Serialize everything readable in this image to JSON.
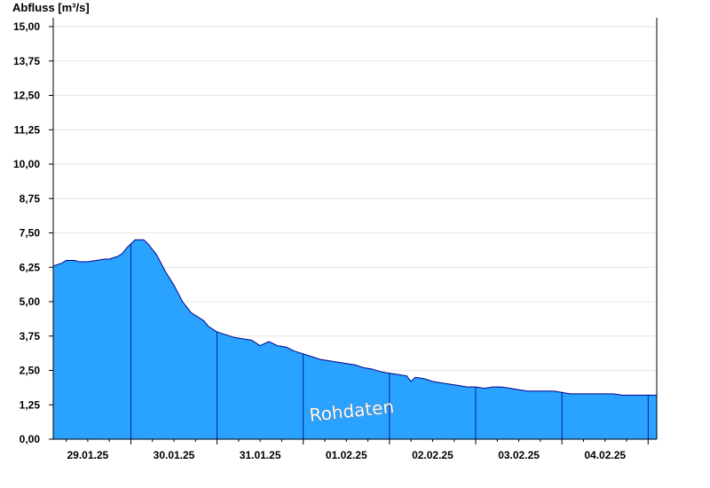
{
  "chart_data": {
    "type": "area",
    "ylabel": "Abfluss [m³/s]",
    "watermark": "Rohdaten",
    "ylim": [
      0,
      15
    ],
    "xlim_days": [
      28.6,
      35.6
    ],
    "y_ticks": [
      "0,00",
      "1,25",
      "2,50",
      "3,75",
      "5,00",
      "6,25",
      "7,50",
      "8,75",
      "10,00",
      "11,25",
      "12,50",
      "13,75",
      "15,00"
    ],
    "x_ticks": [
      "29.01.25",
      "30.01.25",
      "31.01.25",
      "01.02.25",
      "02.02.25",
      "03.02.25",
      "04.02.25"
    ],
    "grid": true,
    "colors": {
      "fill": "#29a3ff",
      "line": "#00008b",
      "grid": "#e6e6e6",
      "axis": "#000000"
    },
    "series": [
      {
        "x": [
          28.6,
          28.7,
          28.75,
          28.85,
          28.9,
          29.0,
          29.1,
          29.2,
          29.25,
          29.3,
          29.35,
          29.4,
          29.45,
          29.5,
          29.55,
          29.6,
          29.65,
          29.7,
          29.75,
          29.8,
          29.85,
          29.9,
          29.95,
          30.0,
          30.05,
          30.1,
          30.2,
          30.25,
          30.3,
          30.35,
          30.4,
          30.5,
          30.6,
          30.7,
          30.8,
          30.9,
          31.0,
          31.1,
          31.2,
          31.3,
          31.4,
          31.5,
          31.6,
          31.7,
          31.8,
          31.9,
          32.0,
          32.1,
          32.2,
          32.3,
          32.4,
          32.5,
          32.6,
          32.7,
          32.75,
          32.8,
          32.9,
          33.0,
          33.1,
          33.2,
          33.3,
          33.4,
          33.45,
          33.5,
          33.6,
          33.7,
          33.8,
          33.9,
          34.0,
          34.1,
          34.2,
          34.25,
          34.3,
          34.4,
          34.5,
          34.6,
          34.7,
          34.8,
          34.9,
          35.0,
          35.1,
          35.2,
          35.3,
          35.4,
          35.5,
          35.6
        ],
        "y": [
          6.3,
          6.4,
          6.5,
          6.5,
          6.45,
          6.45,
          6.5,
          6.55,
          6.55,
          6.6,
          6.65,
          6.75,
          6.95,
          7.1,
          7.25,
          7.25,
          7.25,
          7.1,
          6.9,
          6.7,
          6.4,
          6.1,
          5.85,
          5.6,
          5.3,
          5.0,
          4.6,
          4.5,
          4.4,
          4.3,
          4.1,
          3.9,
          3.8,
          3.7,
          3.65,
          3.6,
          3.4,
          3.55,
          3.4,
          3.35,
          3.2,
          3.1,
          3.0,
          2.9,
          2.85,
          2.8,
          2.75,
          2.7,
          2.6,
          2.55,
          2.45,
          2.4,
          2.35,
          2.3,
          2.1,
          2.25,
          2.2,
          2.1,
          2.05,
          2.0,
          1.95,
          1.9,
          1.9,
          1.9,
          1.85,
          1.9,
          1.9,
          1.85,
          1.8,
          1.75,
          1.75,
          1.75,
          1.75,
          1.75,
          1.7,
          1.65,
          1.65,
          1.65,
          1.65,
          1.65,
          1.65,
          1.6,
          1.6,
          1.6,
          1.6,
          1.6
        ]
      }
    ]
  }
}
